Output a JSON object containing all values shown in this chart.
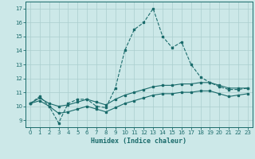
{
  "xlabel": "Humidex (Indice chaleur)",
  "bg_color": "#cce8e8",
  "grid_color": "#aacece",
  "line_color": "#1a6b6b",
  "xlim": [
    -0.5,
    23.5
  ],
  "ylim": [
    8.5,
    17.5
  ],
  "xticks": [
    0,
    1,
    2,
    3,
    4,
    5,
    6,
    7,
    8,
    9,
    10,
    11,
    12,
    13,
    14,
    15,
    16,
    17,
    18,
    19,
    20,
    21,
    22,
    23
  ],
  "yticks": [
    9,
    10,
    11,
    12,
    13,
    14,
    15,
    16,
    17
  ],
  "line1_x": [
    0,
    1,
    2,
    3,
    4,
    5,
    6,
    7,
    8,
    9,
    10,
    11,
    12,
    13,
    14,
    15,
    16,
    17,
    18,
    19,
    20,
    21,
    22,
    23
  ],
  "line1_y": [
    10.2,
    10.7,
    10.0,
    8.8,
    10.2,
    10.5,
    10.5,
    10.0,
    9.9,
    11.3,
    14.0,
    15.5,
    16.0,
    17.0,
    15.0,
    14.2,
    14.6,
    13.0,
    12.1,
    11.7,
    11.4,
    11.2,
    11.2,
    11.3
  ],
  "line2_x": [
    0,
    1,
    2,
    3,
    4,
    5,
    6,
    7,
    8,
    9,
    10,
    11,
    12,
    13,
    14,
    15,
    16,
    17,
    18,
    19,
    20,
    21,
    22,
    23
  ],
  "line2_y": [
    10.2,
    10.6,
    10.2,
    10.0,
    10.1,
    10.3,
    10.5,
    10.3,
    10.1,
    10.5,
    10.8,
    11.0,
    11.2,
    11.4,
    11.5,
    11.5,
    11.6,
    11.6,
    11.7,
    11.7,
    11.5,
    11.3,
    11.3,
    11.3
  ],
  "line3_x": [
    0,
    1,
    2,
    3,
    4,
    5,
    6,
    7,
    8,
    9,
    10,
    11,
    12,
    13,
    14,
    15,
    16,
    17,
    18,
    19,
    20,
    21,
    22,
    23
  ],
  "line3_y": [
    10.2,
    10.4,
    10.0,
    9.5,
    9.6,
    9.8,
    10.0,
    9.8,
    9.6,
    9.9,
    10.2,
    10.4,
    10.6,
    10.8,
    10.9,
    10.9,
    11.0,
    11.0,
    11.1,
    11.1,
    10.9,
    10.7,
    10.8,
    10.9
  ]
}
